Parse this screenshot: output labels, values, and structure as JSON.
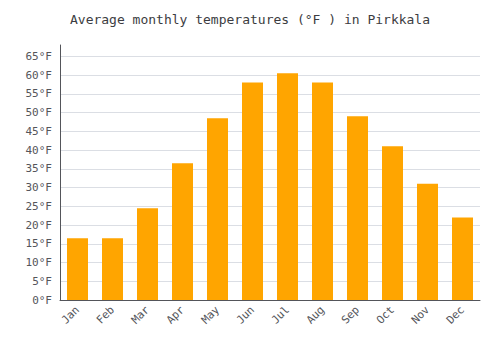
{
  "chart_data": {
    "type": "bar",
    "title": "Average monthly temperatures (°F ) in Pirkkala",
    "categories": [
      "Jan",
      "Feb",
      "Mar",
      "Apr",
      "May",
      "Jun",
      "Jul",
      "Aug",
      "Sep",
      "Oct",
      "Nov",
      "Dec"
    ],
    "values": [
      16.5,
      16.5,
      24.5,
      36.5,
      48.5,
      58.0,
      60.5,
      58.0,
      49.0,
      41.0,
      31.0,
      22.0
    ],
    "color": "#FFA500",
    "ylim": [
      0,
      68
    ],
    "yticks": [
      {
        "value": 0,
        "label": "0°F"
      },
      {
        "value": 5,
        "label": "5°F"
      },
      {
        "value": 10,
        "label": "10°F"
      },
      {
        "value": 15,
        "label": "15°F"
      },
      {
        "value": 20,
        "label": "20°F"
      },
      {
        "value": 25,
        "label": "25°F"
      },
      {
        "value": 30,
        "label": "30°F"
      },
      {
        "value": 35,
        "label": "35°F"
      },
      {
        "value": 40,
        "label": "40°F"
      },
      {
        "value": 45,
        "label": "45°F"
      },
      {
        "value": 50,
        "label": "50°F"
      },
      {
        "value": 55,
        "label": "55°F"
      },
      {
        "value": 60,
        "label": "60°F"
      },
      {
        "value": 65,
        "label": "65°F"
      }
    ],
    "grid": true
  }
}
